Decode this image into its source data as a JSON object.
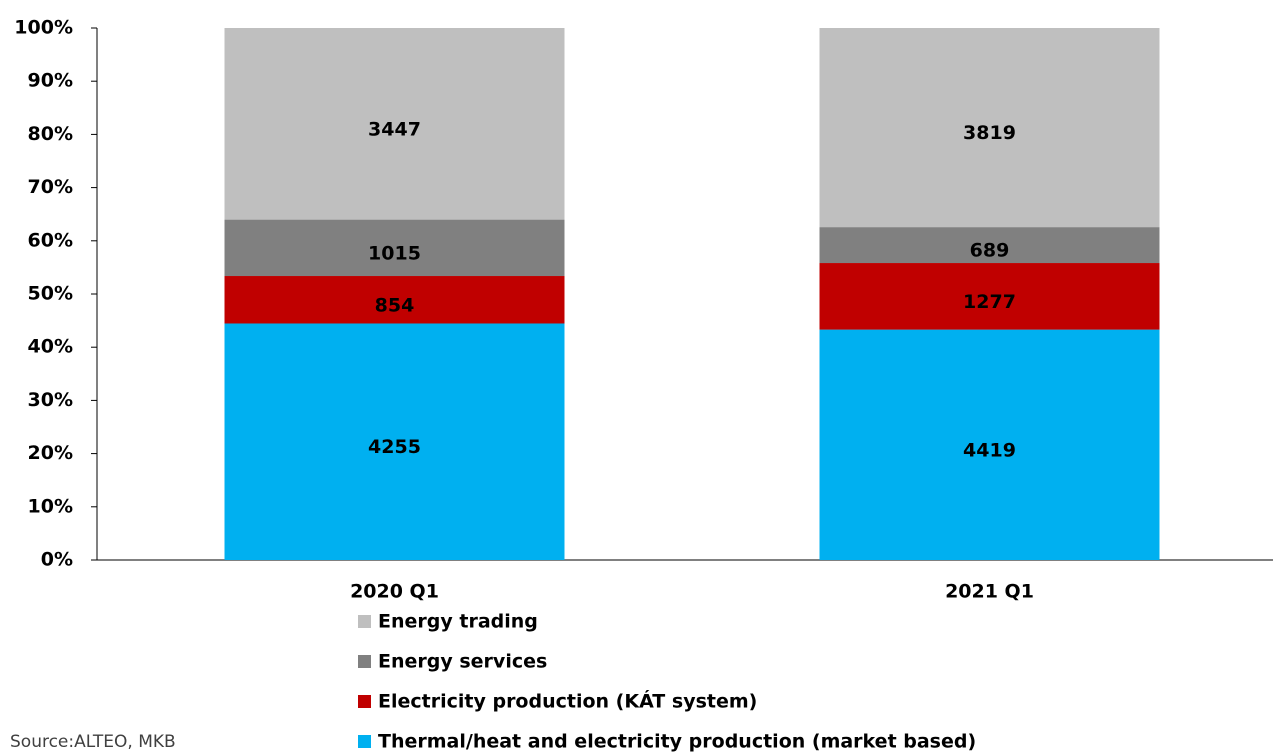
{
  "chart_data": {
    "type": "bar",
    "stacking": "percent",
    "categories": [
      "2020 Q1",
      "2021 Q1"
    ],
    "series": [
      {
        "name": "Thermal/heat and electricity production (market based)",
        "color": "#00b0f0",
        "values": [
          4255,
          4419
        ]
      },
      {
        "name": "Electricity production (KÁT system)",
        "color": "#c00000",
        "values": [
          854,
          1277
        ]
      },
      {
        "name": "Energy services",
        "color": "#808080",
        "values": [
          1015,
          689
        ]
      },
      {
        "name": "Energy trading",
        "color": "#bfbfbf",
        "values": [
          3447,
          3819
        ]
      }
    ],
    "ylim": [
      0,
      100
    ],
    "yticks": [
      {
        "value": 0,
        "label": "0%"
      },
      {
        "value": 10,
        "label": "10%"
      },
      {
        "value": 20,
        "label": "20%"
      },
      {
        "value": 30,
        "label": "30%"
      },
      {
        "value": 40,
        "label": "40%"
      },
      {
        "value": 50,
        "label": "50%"
      },
      {
        "value": 60,
        "label": "60%"
      },
      {
        "value": 70,
        "label": "70%"
      },
      {
        "value": 80,
        "label": "80%"
      },
      {
        "value": 90,
        "label": "90%"
      },
      {
        "value": 100,
        "label": "100%"
      }
    ],
    "grid": false,
    "legend": "bottom",
    "source": "Source:ALTEO, MKB"
  }
}
